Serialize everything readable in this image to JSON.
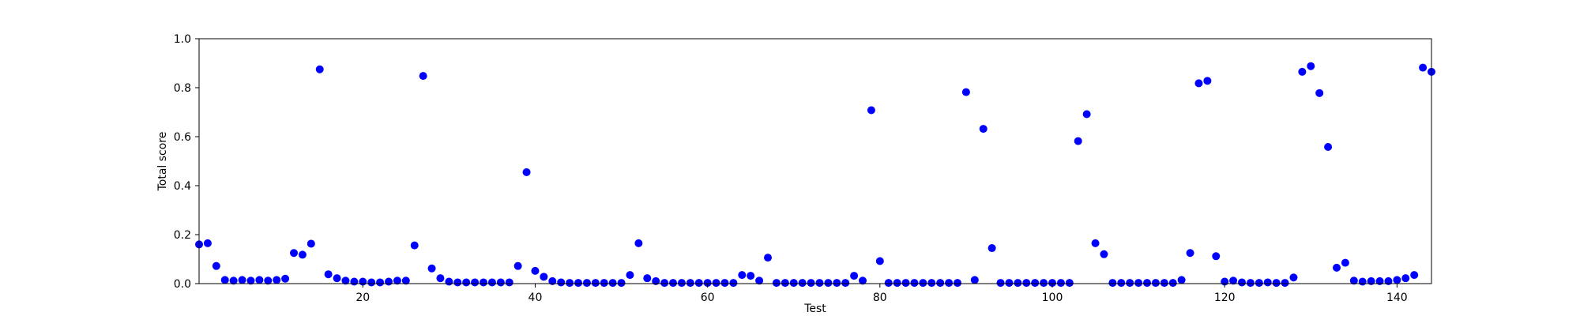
{
  "chart_data": {
    "type": "scatter",
    "title": "",
    "xlabel": "Test",
    "ylabel": "Total score",
    "xlim": [
      1,
      144
    ],
    "ylim": [
      0.0,
      1.0
    ],
    "x_ticks": [
      20,
      40,
      60,
      80,
      100,
      120,
      140
    ],
    "y_ticks": [
      0.0,
      0.2,
      0.4,
      0.6,
      0.8,
      1.0
    ],
    "y_tick_labels": [
      "0.0",
      "0.2",
      "0.4",
      "0.6",
      "0.8",
      "1.0"
    ],
    "grid": false,
    "legend": "none",
    "marker_color": "#0000ff",
    "x": [
      1,
      2,
      3,
      4,
      5,
      6,
      7,
      8,
      9,
      10,
      11,
      12,
      13,
      14,
      15,
      16,
      17,
      18,
      19,
      20,
      21,
      22,
      23,
      24,
      25,
      26,
      27,
      28,
      29,
      30,
      31,
      32,
      33,
      34,
      35,
      36,
      37,
      38,
      39,
      40,
      41,
      42,
      43,
      44,
      45,
      46,
      47,
      48,
      49,
      50,
      51,
      52,
      53,
      54,
      55,
      56,
      57,
      58,
      59,
      60,
      61,
      62,
      63,
      64,
      65,
      66,
      67,
      68,
      69,
      70,
      71,
      72,
      73,
      74,
      75,
      76,
      77,
      78,
      79,
      80,
      81,
      82,
      83,
      84,
      85,
      86,
      87,
      88,
      89,
      90,
      91,
      92,
      93,
      94,
      95,
      96,
      97,
      98,
      99,
      100,
      101,
      102,
      103,
      104,
      105,
      106,
      107,
      108,
      109,
      110,
      111,
      112,
      113,
      114,
      115,
      116,
      117,
      118,
      119,
      120,
      121,
      122,
      123,
      124,
      125,
      126,
      127,
      128,
      129,
      130,
      131,
      132,
      133,
      134,
      135,
      136,
      137,
      138,
      139,
      140,
      141,
      142,
      143,
      144
    ],
    "y": [
      0.16,
      0.165,
      0.072,
      0.015,
      0.012,
      0.015,
      0.012,
      0.015,
      0.012,
      0.015,
      0.02,
      0.125,
      0.118,
      0.163,
      0.875,
      0.038,
      0.022,
      0.012,
      0.008,
      0.008,
      0.005,
      0.005,
      0.008,
      0.012,
      0.012,
      0.156,
      0.848,
      0.062,
      0.022,
      0.008,
      0.005,
      0.005,
      0.005,
      0.005,
      0.005,
      0.005,
      0.005,
      0.072,
      0.455,
      0.052,
      0.028,
      0.01,
      0.005,
      0.003,
      0.003,
      0.003,
      0.003,
      0.003,
      0.003,
      0.003,
      0.035,
      0.165,
      0.022,
      0.01,
      0.003,
      0.003,
      0.003,
      0.003,
      0.003,
      0.003,
      0.003,
      0.003,
      0.003,
      0.035,
      0.032,
      0.012,
      0.106,
      0.003,
      0.003,
      0.003,
      0.003,
      0.003,
      0.003,
      0.003,
      0.003,
      0.003,
      0.032,
      0.012,
      0.708,
      0.092,
      0.003,
      0.003,
      0.003,
      0.003,
      0.003,
      0.003,
      0.003,
      0.003,
      0.003,
      0.782,
      0.015,
      0.632,
      0.145,
      0.003,
      0.003,
      0.003,
      0.003,
      0.003,
      0.003,
      0.003,
      0.003,
      0.003,
      0.582,
      0.692,
      0.165,
      0.12,
      0.003,
      0.003,
      0.003,
      0.003,
      0.003,
      0.003,
      0.003,
      0.003,
      0.015,
      0.125,
      0.818,
      0.828,
      0.112,
      0.008,
      0.012,
      0.005,
      0.003,
      0.003,
      0.005,
      0.003,
      0.003,
      0.025,
      0.865,
      0.888,
      0.778,
      0.558,
      0.065,
      0.085,
      0.012,
      0.008,
      0.01,
      0.01,
      0.01,
      0.015,
      0.022,
      0.035,
      0.882,
      0.865
    ]
  }
}
